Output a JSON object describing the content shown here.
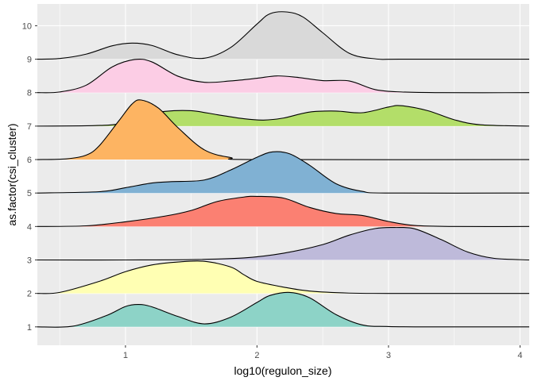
{
  "chart_data": {
    "type": "ridgeline",
    "title": "",
    "xlabel": "log10(regulon_size)",
    "ylabel": "as.factor(csi_cluster)",
    "xlim": [
      0.33,
      4.07
    ],
    "ylim": [
      0.45,
      10.65
    ],
    "x_ticks": [
      "1",
      "2",
      "3",
      "4"
    ],
    "y_ticks": [
      "1",
      "2",
      "3",
      "4",
      "5",
      "6",
      "7",
      "8",
      "9",
      "10"
    ],
    "panel_background": "#EBEBEB",
    "grid_color": "#FFFFFF",
    "series": [
      {
        "name": "1",
        "fill": "#8DD3C7",
        "x": [
          0.33,
          0.6,
          0.85,
          1.0,
          1.1,
          1.2,
          1.4,
          1.6,
          1.8,
          2.0,
          2.1,
          2.25,
          2.4,
          2.6,
          2.8,
          3.0,
          3.4,
          4.07
        ],
        "height": [
          0,
          0.02,
          0.33,
          0.61,
          0.67,
          0.6,
          0.31,
          0.09,
          0.29,
          0.73,
          0.94,
          1.03,
          0.87,
          0.37,
          0.06,
          0.01,
          0,
          0
        ]
      },
      {
        "name": "2",
        "fill": "#FFFFB3",
        "x": [
          0.33,
          0.5,
          0.8,
          1.0,
          1.2,
          1.4,
          1.6,
          1.8,
          1.9,
          2.0,
          2.2,
          2.4,
          2.7,
          3.0,
          4.07
        ],
        "height": [
          0,
          0.03,
          0.36,
          0.65,
          0.85,
          0.94,
          0.96,
          0.79,
          0.56,
          0.36,
          0.19,
          0.07,
          0.01,
          0,
          0
        ]
      },
      {
        "name": "3",
        "fill": "#BEBADA",
        "x": [
          0.33,
          1.0,
          1.5,
          1.9,
          2.2,
          2.5,
          2.7,
          2.9,
          3.05,
          3.2,
          3.4,
          3.6,
          3.8,
          4.07
        ],
        "height": [
          0,
          0,
          0.01,
          0.06,
          0.2,
          0.46,
          0.74,
          0.94,
          0.97,
          0.93,
          0.61,
          0.24,
          0.05,
          0
        ]
      },
      {
        "name": "4",
        "fill": "#FB8072",
        "x": [
          0.33,
          0.7,
          1.0,
          1.3,
          1.5,
          1.7,
          1.9,
          2.0,
          2.2,
          2.4,
          2.6,
          2.8,
          3.0,
          3.2,
          3.5,
          4.07
        ],
        "height": [
          0,
          0.02,
          0.14,
          0.31,
          0.48,
          0.75,
          0.88,
          0.9,
          0.85,
          0.57,
          0.39,
          0.33,
          0.15,
          0.03,
          0,
          0
        ]
      },
      {
        "name": "5",
        "fill": "#80B1D3",
        "x": [
          0.33,
          0.8,
          1.0,
          1.2,
          1.35,
          1.6,
          1.8,
          2.0,
          2.12,
          2.25,
          2.4,
          2.6,
          2.8,
          3.0,
          4.07
        ],
        "height": [
          0,
          0.04,
          0.16,
          0.3,
          0.34,
          0.39,
          0.69,
          1.07,
          1.23,
          1.17,
          0.83,
          0.28,
          0.05,
          0,
          0
        ]
      },
      {
        "name": "6",
        "fill": "#FDB462",
        "x": [
          0.33,
          0.55,
          0.7,
          0.8,
          0.95,
          1.05,
          1.12,
          1.25,
          1.4,
          1.6,
          1.8,
          2.0,
          4.07
        ],
        "height": [
          0,
          0.02,
          0.13,
          0.41,
          1.16,
          1.66,
          1.78,
          1.54,
          0.95,
          0.29,
          0.06,
          0,
          0
        ]
      },
      {
        "name": "7",
        "fill": "#B3DE69",
        "x": [
          0.33,
          0.9,
          1.1,
          1.3,
          1.5,
          1.7,
          1.9,
          2.05,
          2.2,
          2.4,
          2.6,
          2.8,
          3.0,
          3.1,
          3.3,
          3.5,
          3.7,
          4.07
        ],
        "height": [
          0,
          0.04,
          0.3,
          0.44,
          0.46,
          0.34,
          0.22,
          0.18,
          0.24,
          0.42,
          0.45,
          0.4,
          0.57,
          0.61,
          0.46,
          0.19,
          0.04,
          0
        ]
      },
      {
        "name": "8",
        "fill": "#FCCDE5",
        "x": [
          0.33,
          0.5,
          0.7,
          0.9,
          1.07,
          1.2,
          1.4,
          1.6,
          1.8,
          2.0,
          2.15,
          2.3,
          2.5,
          2.7,
          2.9,
          3.1,
          3.4,
          4.07
        ],
        "height": [
          0,
          0.02,
          0.22,
          0.77,
          0.99,
          0.92,
          0.49,
          0.31,
          0.35,
          0.43,
          0.5,
          0.46,
          0.36,
          0.35,
          0.09,
          0.02,
          0,
          0
        ]
      },
      {
        "name": "9",
        "fill": "#D9D9D9",
        "x": [
          0.33,
          0.5,
          0.7,
          0.9,
          1.05,
          1.2,
          1.4,
          1.6,
          1.8,
          2.0,
          2.1,
          2.23,
          2.35,
          2.5,
          2.7,
          2.9,
          3.1,
          4.07
        ],
        "height": [
          0,
          0.02,
          0.15,
          0.4,
          0.48,
          0.41,
          0.13,
          0.03,
          0.35,
          1.05,
          1.36,
          1.41,
          1.26,
          0.79,
          0.18,
          0.01,
          0,
          0
        ]
      }
    ]
  }
}
